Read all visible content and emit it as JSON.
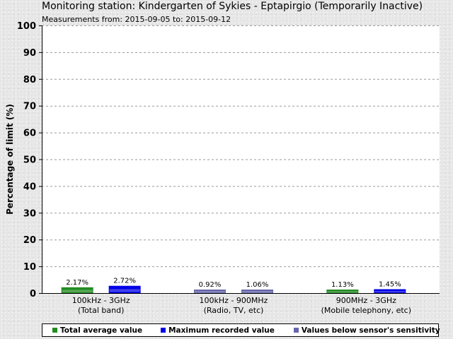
{
  "header": {
    "title": "Monitoring station: Kindergarten of Sykies - Eptapirgio (Temporarily Inactive)",
    "subtitle": "Measurements from: 2015-09-05 to: 2015-09-12"
  },
  "colors": {
    "total_average": "#228b22",
    "maximum": "#0000e6",
    "below_sensitivity": "#6666aa"
  },
  "chart_data": {
    "type": "bar",
    "title": "Monitoring station: Kindergarten of Sykies - Eptapirgio (Temporarily Inactive)",
    "subtitle": "Measurements from: 2015-09-05 to: 2015-09-12",
    "ylabel": "Percentage of limit (%)",
    "xlabel": "",
    "ylim": [
      0,
      100
    ],
    "yticks": [
      "0",
      "10",
      "20",
      "30",
      "40",
      "50",
      "60",
      "70",
      "80",
      "90",
      "100"
    ],
    "grid": true,
    "legend_position": "bottom",
    "categories": [
      [
        "100kHz - 3GHz",
        "(Total band)"
      ],
      [
        "100kHz - 900MHz",
        "(Radio, TV, etc)"
      ],
      [
        "900MHz - 3GHz",
        "(Mobile telephony, etc)"
      ]
    ],
    "series": [
      {
        "name": "Total average value",
        "values": [
          2.17,
          0.92,
          1.13
        ],
        "labels": [
          "2.17%",
          "0.92%",
          "1.13%"
        ]
      },
      {
        "name": "Maximum recorded value",
        "values": [
          2.72,
          1.06,
          1.45
        ],
        "labels": [
          "2.72%",
          "1.06%",
          "1.45%"
        ]
      }
    ],
    "below_sensitivity": [
      [
        false,
        false
      ],
      [
        true,
        true
      ],
      [
        false,
        false
      ]
    ],
    "legend": [
      "Total average value",
      "Maximum recorded value",
      "Values below sensor's sensitivity"
    ]
  }
}
